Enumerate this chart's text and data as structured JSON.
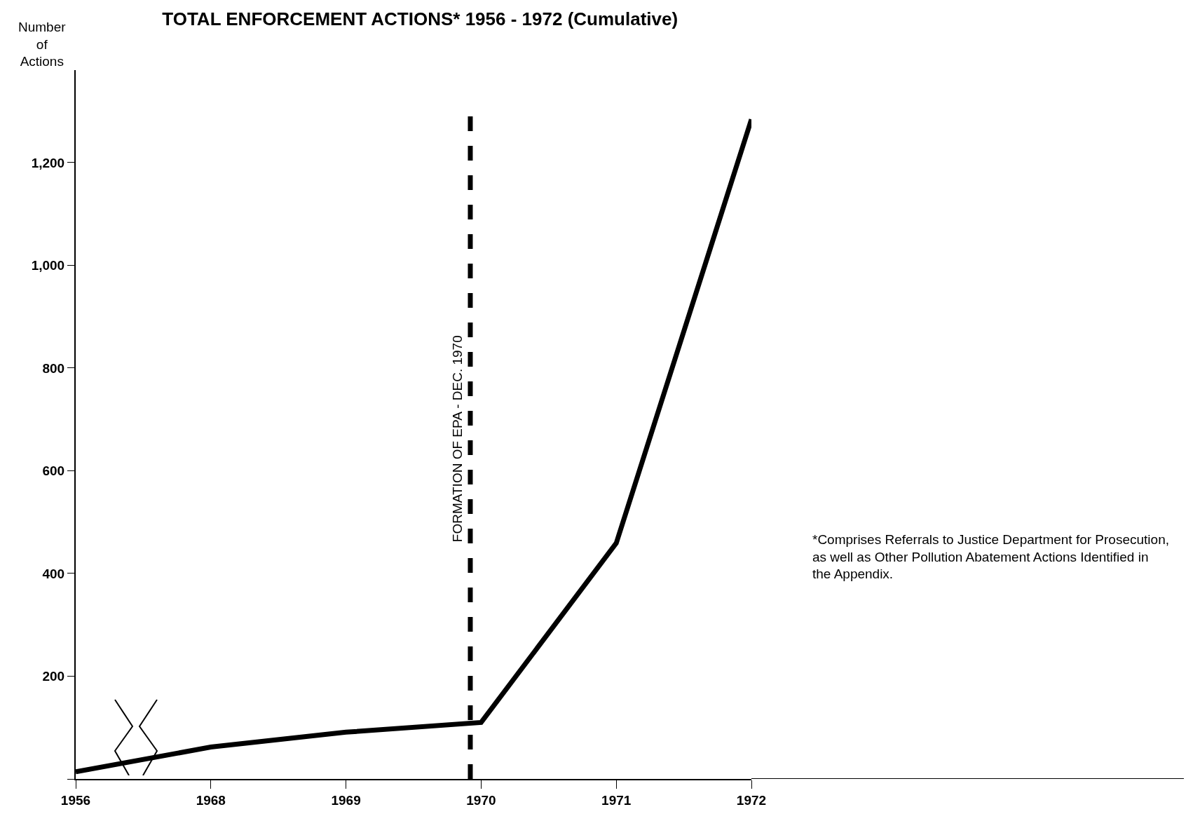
{
  "chart_data": {
    "type": "line",
    "title": "TOTAL ENFORCEMENT ACTIONS* 1956 - 1972 (Cumulative)",
    "ylabel": "Number of Actions",
    "categories": [
      "1956",
      "1968",
      "1969",
      "1970",
      "1971",
      "1972"
    ],
    "series": [
      {
        "color": "#000000",
        "values": [
          14,
          62,
          91,
          110,
          459,
          1284
        ]
      }
    ],
    "ylim": [
      0,
      1380
    ],
    "yticks": [
      {
        "value": 0,
        "label": null
      },
      {
        "value": 200,
        "label": "200"
      },
      {
        "value": 400,
        "label": "400"
      },
      {
        "value": 600,
        "label": "600"
      },
      {
        "value": 800,
        "label": "800"
      },
      {
        "value": 1000,
        "label": "1,000"
      },
      {
        "value": 1200,
        "label": "1,200"
      }
    ],
    "ref_lines": [
      {
        "axis": "x",
        "value": "1970",
        "label": "FORMATION OF EPA - DEC. 1970",
        "color": "#000000",
        "line_style": "dashed"
      }
    ],
    "annotations": [
      "*Comprises Referrals to Justice Department for Prosecution,\nas well as Other Pollution Abatement Actions Identified in\nthe Appendix."
    ],
    "grid": false,
    "marker": "none",
    "line_style": "solid"
  }
}
